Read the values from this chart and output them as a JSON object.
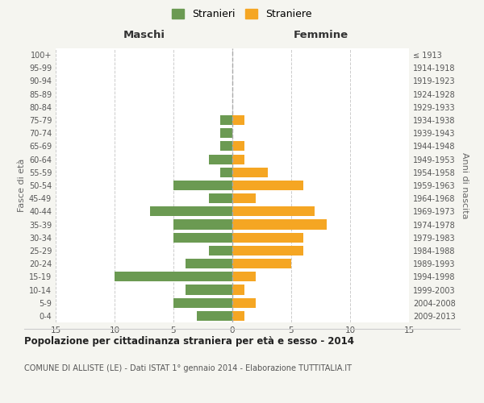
{
  "age_groups": [
    "0-4",
    "5-9",
    "10-14",
    "15-19",
    "20-24",
    "25-29",
    "30-34",
    "35-39",
    "40-44",
    "45-49",
    "50-54",
    "55-59",
    "60-64",
    "65-69",
    "70-74",
    "75-79",
    "80-84",
    "85-89",
    "90-94",
    "95-99",
    "100+"
  ],
  "birth_years": [
    "2009-2013",
    "2004-2008",
    "1999-2003",
    "1994-1998",
    "1989-1993",
    "1984-1988",
    "1979-1983",
    "1974-1978",
    "1969-1973",
    "1964-1968",
    "1959-1963",
    "1954-1958",
    "1949-1953",
    "1944-1948",
    "1939-1943",
    "1934-1938",
    "1929-1933",
    "1924-1928",
    "1919-1923",
    "1914-1918",
    "≤ 1913"
  ],
  "maschi": [
    3,
    5,
    4,
    10,
    4,
    2,
    5,
    5,
    7,
    2,
    5,
    1,
    2,
    1,
    1,
    1,
    0,
    0,
    0,
    0,
    0
  ],
  "femmine": [
    1,
    2,
    1,
    2,
    5,
    6,
    6,
    8,
    7,
    2,
    6,
    3,
    1,
    1,
    0,
    1,
    0,
    0,
    0,
    0,
    0
  ],
  "male_color": "#6b9a52",
  "female_color": "#f5a623",
  "background_color": "#f5f5f0",
  "chart_bg": "#ffffff",
  "title": "Popolazione per cittadinanza straniera per età e sesso - 2014",
  "subtitle": "COMUNE DI ALLISTE (LE) - Dati ISTAT 1° gennaio 2014 - Elaborazione TUTTITALIA.IT",
  "xlabel_left": "Maschi",
  "xlabel_right": "Femmine",
  "ylabel_left": "Fasce di età",
  "ylabel_right": "Anni di nascita",
  "legend_male": "Stranieri",
  "legend_female": "Straniere",
  "xlim": 15,
  "grid_color": "#cccccc"
}
